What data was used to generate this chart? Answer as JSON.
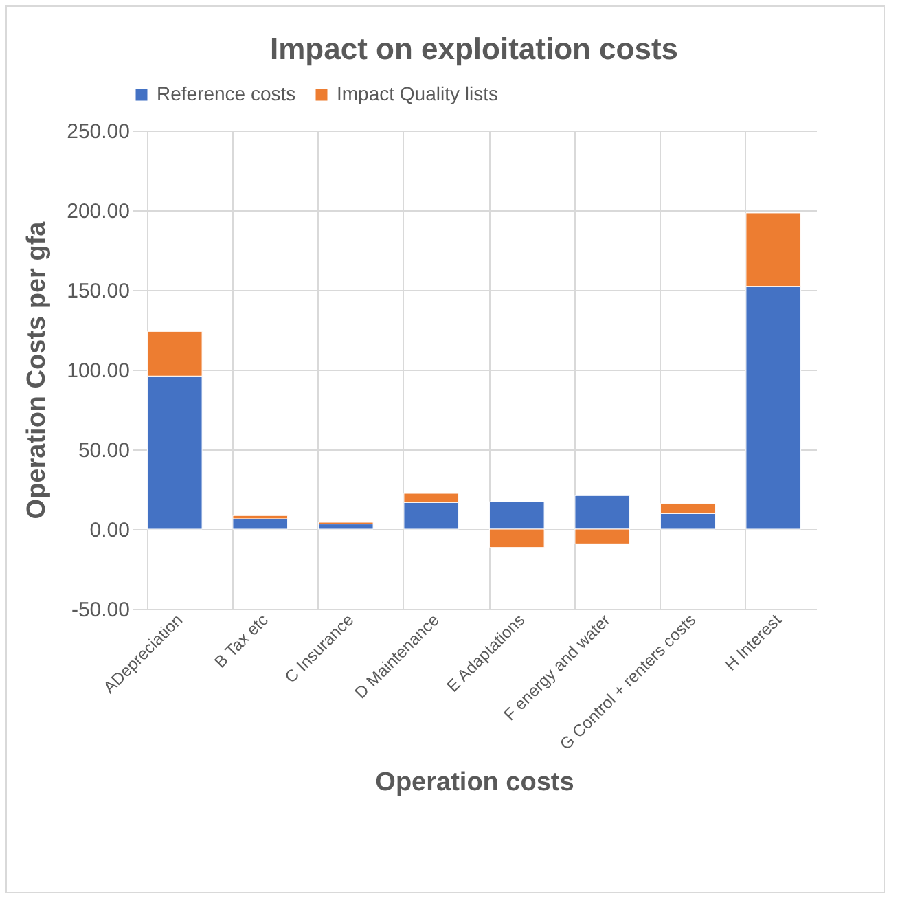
{
  "chart_data": {
    "type": "bar",
    "title": "Impact on exploitation costs",
    "xlabel": "Operation costs",
    "ylabel": "Operation Costs per gfa",
    "categories": [
      "ADepreciation",
      "B Tax etc",
      "C Insurance",
      "D Maintenance",
      "E Adaptations",
      "F energy and water",
      "G Control + renters costs",
      "H Interest"
    ],
    "stacked": true,
    "series": [
      {
        "name": "Reference costs",
        "color": "#4472c4",
        "values": [
          96,
          6.5,
          3.2,
          16.7,
          17.2,
          21,
          9.8,
          152.3
        ]
      },
      {
        "name": "Impact Quality lists",
        "color": "#ed7d31",
        "values": [
          28,
          2,
          1.1,
          5.7,
          -11.5,
          -9.2,
          6.3,
          46
        ]
      }
    ],
    "ylim": [
      -50,
      250
    ],
    "yticks": [
      {
        "value": -50,
        "label": "-50.00"
      },
      {
        "value": 0,
        "label": "0.00"
      },
      {
        "value": 50,
        "label": "50.00"
      },
      {
        "value": 100,
        "label": "100.00"
      },
      {
        "value": 150,
        "label": "150.00"
      },
      {
        "value": 200,
        "label": "200.00"
      },
      {
        "value": 250,
        "label": "250.00"
      }
    ],
    "grid": true,
    "legend": "top"
  }
}
